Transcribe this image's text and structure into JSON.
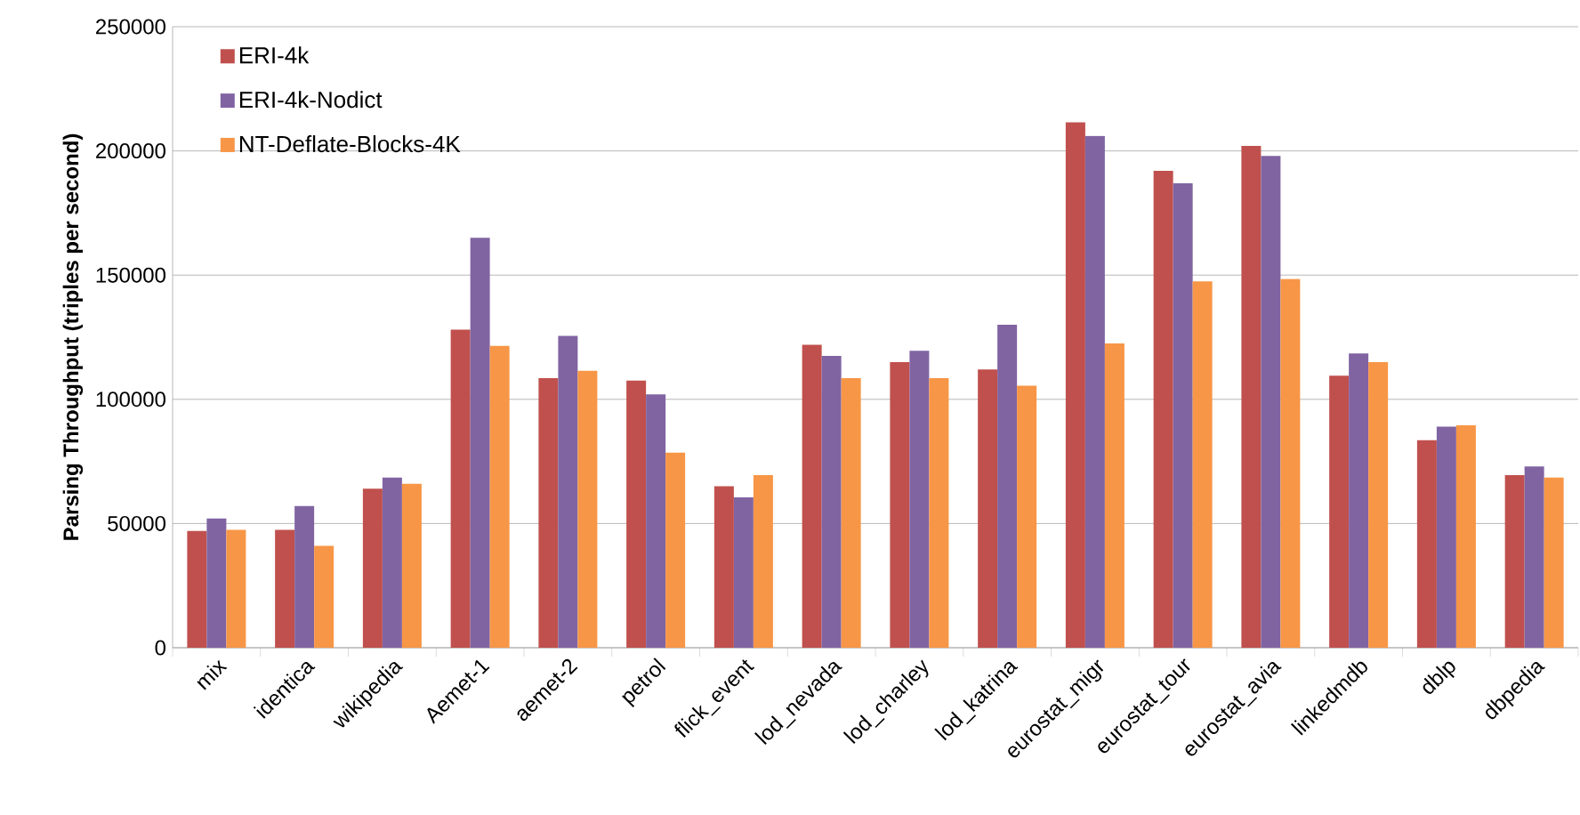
{
  "chart_data": {
    "type": "bar",
    "ylabel": "Parsing Throughput (triples per second)",
    "categories": [
      "mix",
      "identica",
      "wikipedia",
      "Aemet-1",
      "aemet-2",
      "petrol",
      "flick_event",
      "lod_nevada",
      "lod_charley",
      "lod_katrina",
      "eurostat_migr",
      "eurostat_tour",
      "eurostat_avia",
      "linkedmdb",
      "dblp",
      "dbpedia"
    ],
    "series": [
      {
        "name": "ERI-4k",
        "color": "#c0504d",
        "values": [
          47000,
          47500,
          64000,
          128000,
          108500,
          107500,
          65000,
          122000,
          115000,
          112000,
          211500,
          192000,
          202000,
          109500,
          83500,
          69500
        ]
      },
      {
        "name": "ERI-4k-Nodict",
        "color": "#8064a2",
        "values": [
          52000,
          57000,
          68500,
          165000,
          125500,
          102000,
          60500,
          117500,
          119500,
          130000,
          206000,
          187000,
          198000,
          118500,
          89000,
          73000
        ]
      },
      {
        "name": "NT-Deflate-Blocks-4K",
        "color": "#f79646",
        "values": [
          47500,
          41000,
          66000,
          121500,
          111500,
          78500,
          69500,
          108500,
          108500,
          105500,
          122500,
          147500,
          148500,
          115000,
          89500,
          68500
        ]
      }
    ],
    "ylim": [
      0,
      250000
    ],
    "yticks": [
      0,
      50000,
      100000,
      150000,
      200000,
      250000
    ],
    "grid": "y",
    "legend": "top left"
  }
}
